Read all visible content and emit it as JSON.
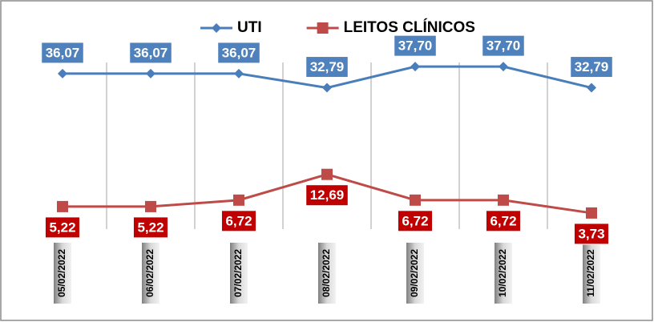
{
  "chart_data": {
    "type": "line",
    "categories": [
      "05/02/2022",
      "06/02/2022",
      "07/02/2022",
      "08/02/2022",
      "09/02/2022",
      "10/02/2022",
      "11/02/2022"
    ],
    "series": [
      {
        "name": "UTI",
        "color": "#4a7ebb",
        "label_color": "#4f81bd",
        "label_position": "above",
        "values": [
          36.07,
          36.07,
          36.07,
          32.79,
          37.7,
          37.7,
          32.79
        ],
        "value_labels": [
          "36,07",
          "36,07",
          "36,07",
          "32,79",
          "37,70",
          "37,70",
          "32,79"
        ]
      },
      {
        "name": "LEITOS CLÍNICOS",
        "color": "#be4b48",
        "label_color": "#c00000",
        "label_position": "below",
        "values": [
          5.22,
          5.22,
          6.72,
          12.69,
          6.72,
          6.72,
          3.73
        ],
        "value_labels": [
          "5,22",
          "5,22",
          "6,72",
          "12,69",
          "6,72",
          "6,72",
          "3,73"
        ]
      }
    ],
    "ylim": [
      0,
      42
    ],
    "grid": true,
    "legend": "top"
  }
}
